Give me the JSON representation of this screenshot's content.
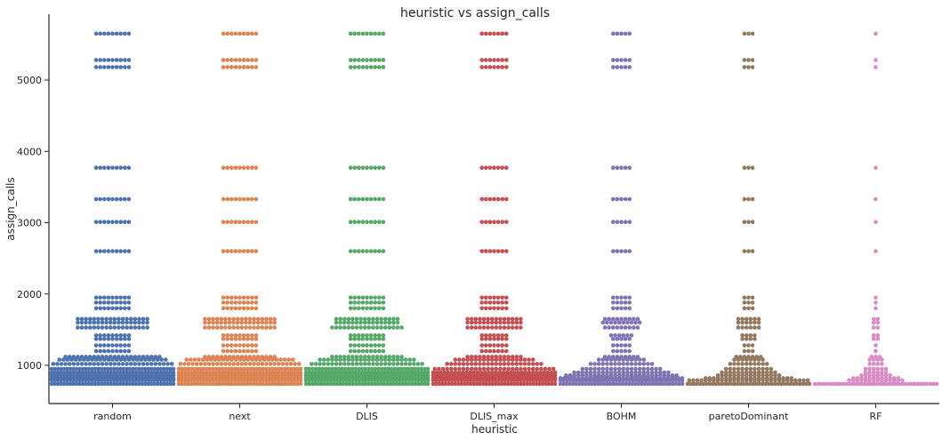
{
  "chart_data": {
    "type": "scatter",
    "subtype": "swarm",
    "title": "heuristic vs assign_calls",
    "xlabel": "heuristic",
    "ylabel": "assign_calls",
    "categories": [
      "random",
      "next",
      "DLIS",
      "DLIS_max",
      "BOHM",
      "paretoDominant",
      "RF"
    ],
    "colors": [
      "#4c72b0",
      "#dd8452",
      "#55a868",
      "#c44e52",
      "#8172b3",
      "#937860",
      "#da8bc3"
    ],
    "ylim": [
      450,
      5800
    ],
    "yticks": [
      1000,
      2000,
      3000,
      4000,
      5000
    ],
    "grid": false,
    "legend": "none",
    "series": [
      {
        "category": "random",
        "levels": [
          {
            "y": 5650,
            "n": 9
          },
          {
            "y": 5280,
            "n": 9
          },
          {
            "y": 5180,
            "n": 9
          },
          {
            "y": 3770,
            "n": 9
          },
          {
            "y": 3330,
            "n": 9
          },
          {
            "y": 3010,
            "n": 9
          },
          {
            "y": 2600,
            "n": 9
          },
          {
            "y": 1950,
            "n": 9
          },
          {
            "y": 1880,
            "n": 9
          },
          {
            "y": 1800,
            "n": 9
          },
          {
            "y": 1650,
            "n": 18
          },
          {
            "y": 1600,
            "n": 18
          },
          {
            "y": 1530,
            "n": 18
          },
          {
            "y": 1420,
            "n": 9
          },
          {
            "y": 1370,
            "n": 9
          },
          {
            "y": 1280,
            "n": 9
          },
          {
            "y": 1200,
            "n": 9
          },
          {
            "y": 1120,
            "n": 24
          },
          {
            "y": 1080,
            "n": 27
          },
          {
            "y": 1020,
            "n": 30
          },
          {
            "y": 950,
            "n": 40
          },
          {
            "y": 900,
            "n": 40
          },
          {
            "y": 860,
            "n": 40
          },
          {
            "y": 820,
            "n": 40
          },
          {
            "y": 790,
            "n": 40
          },
          {
            "y": 740,
            "n": 40
          }
        ]
      },
      {
        "category": "next",
        "levels": [
          {
            "y": 5650,
            "n": 9
          },
          {
            "y": 5280,
            "n": 9
          },
          {
            "y": 5180,
            "n": 9
          },
          {
            "y": 3770,
            "n": 9
          },
          {
            "y": 3330,
            "n": 9
          },
          {
            "y": 3010,
            "n": 9
          },
          {
            "y": 2600,
            "n": 9
          },
          {
            "y": 1950,
            "n": 9
          },
          {
            "y": 1880,
            "n": 9
          },
          {
            "y": 1800,
            "n": 9
          },
          {
            "y": 1650,
            "n": 18
          },
          {
            "y": 1600,
            "n": 18
          },
          {
            "y": 1530,
            "n": 18
          },
          {
            "y": 1420,
            "n": 9
          },
          {
            "y": 1370,
            "n": 9
          },
          {
            "y": 1280,
            "n": 9
          },
          {
            "y": 1200,
            "n": 9
          },
          {
            "y": 1120,
            "n": 18
          },
          {
            "y": 1080,
            "n": 27
          },
          {
            "y": 1020,
            "n": 30
          },
          {
            "y": 950,
            "n": 40
          },
          {
            "y": 900,
            "n": 40
          },
          {
            "y": 860,
            "n": 40
          },
          {
            "y": 820,
            "n": 40
          },
          {
            "y": 790,
            "n": 40
          },
          {
            "y": 740,
            "n": 40
          }
        ]
      },
      {
        "category": "DLIS",
        "levels": [
          {
            "y": 5650,
            "n": 9
          },
          {
            "y": 5280,
            "n": 9
          },
          {
            "y": 5180,
            "n": 9
          },
          {
            "y": 3770,
            "n": 9
          },
          {
            "y": 3330,
            "n": 9
          },
          {
            "y": 3010,
            "n": 9
          },
          {
            "y": 2600,
            "n": 9
          },
          {
            "y": 1950,
            "n": 9
          },
          {
            "y": 1880,
            "n": 9
          },
          {
            "y": 1800,
            "n": 9
          },
          {
            "y": 1650,
            "n": 16
          },
          {
            "y": 1600,
            "n": 16
          },
          {
            "y": 1530,
            "n": 18
          },
          {
            "y": 1420,
            "n": 9
          },
          {
            "y": 1370,
            "n": 9
          },
          {
            "y": 1280,
            "n": 9
          },
          {
            "y": 1200,
            "n": 9
          },
          {
            "y": 1120,
            "n": 18
          },
          {
            "y": 1080,
            "n": 24
          },
          {
            "y": 1020,
            "n": 28
          },
          {
            "y": 950,
            "n": 38
          },
          {
            "y": 900,
            "n": 40
          },
          {
            "y": 860,
            "n": 40
          },
          {
            "y": 820,
            "n": 40
          },
          {
            "y": 790,
            "n": 40
          },
          {
            "y": 740,
            "n": 40
          }
        ]
      },
      {
        "category": "DLIS_max",
        "levels": [
          {
            "y": 5650,
            "n": 7
          },
          {
            "y": 5280,
            "n": 7
          },
          {
            "y": 5180,
            "n": 7
          },
          {
            "y": 3770,
            "n": 7
          },
          {
            "y": 3330,
            "n": 7
          },
          {
            "y": 3010,
            "n": 7
          },
          {
            "y": 2600,
            "n": 7
          },
          {
            "y": 1950,
            "n": 7
          },
          {
            "y": 1880,
            "n": 7
          },
          {
            "y": 1800,
            "n": 7
          },
          {
            "y": 1650,
            "n": 14
          },
          {
            "y": 1600,
            "n": 14
          },
          {
            "y": 1530,
            "n": 14
          },
          {
            "y": 1420,
            "n": 7
          },
          {
            "y": 1370,
            "n": 7
          },
          {
            "y": 1280,
            "n": 7
          },
          {
            "y": 1200,
            "n": 7
          },
          {
            "y": 1120,
            "n": 14
          },
          {
            "y": 1080,
            "n": 20
          },
          {
            "y": 1020,
            "n": 24
          },
          {
            "y": 950,
            "n": 30
          },
          {
            "y": 900,
            "n": 34
          },
          {
            "y": 860,
            "n": 40
          },
          {
            "y": 820,
            "n": 40
          },
          {
            "y": 790,
            "n": 40
          },
          {
            "y": 740,
            "n": 40
          }
        ]
      },
      {
        "category": "BOHM",
        "levels": [
          {
            "y": 5650,
            "n": 5
          },
          {
            "y": 5280,
            "n": 5
          },
          {
            "y": 5180,
            "n": 5
          },
          {
            "y": 3770,
            "n": 5
          },
          {
            "y": 3330,
            "n": 5
          },
          {
            "y": 3010,
            "n": 5
          },
          {
            "y": 2600,
            "n": 5
          },
          {
            "y": 1950,
            "n": 5
          },
          {
            "y": 1880,
            "n": 5
          },
          {
            "y": 1800,
            "n": 5
          },
          {
            "y": 1650,
            "n": 9
          },
          {
            "y": 1600,
            "n": 10
          },
          {
            "y": 1530,
            "n": 9
          },
          {
            "y": 1420,
            "n": 6
          },
          {
            "y": 1370,
            "n": 5
          },
          {
            "y": 1280,
            "n": 5
          },
          {
            "y": 1200,
            "n": 5
          },
          {
            "y": 1120,
            "n": 9
          },
          {
            "y": 1080,
            "n": 12
          },
          {
            "y": 1020,
            "n": 16
          },
          {
            "y": 950,
            "n": 20
          },
          {
            "y": 900,
            "n": 24
          },
          {
            "y": 860,
            "n": 28
          },
          {
            "y": 820,
            "n": 34
          },
          {
            "y": 790,
            "n": 38
          },
          {
            "y": 740,
            "n": 40
          }
        ]
      },
      {
        "category": "paretoDominant",
        "levels": [
          {
            "y": 5650,
            "n": 3
          },
          {
            "y": 5280,
            "n": 3
          },
          {
            "y": 5180,
            "n": 3
          },
          {
            "y": 3770,
            "n": 3
          },
          {
            "y": 3330,
            "n": 3
          },
          {
            "y": 3010,
            "n": 3
          },
          {
            "y": 2600,
            "n": 3
          },
          {
            "y": 1950,
            "n": 3
          },
          {
            "y": 1880,
            "n": 3
          },
          {
            "y": 1800,
            "n": 3
          },
          {
            "y": 1650,
            "n": 6
          },
          {
            "y": 1600,
            "n": 6
          },
          {
            "y": 1530,
            "n": 6
          },
          {
            "y": 1420,
            "n": 4
          },
          {
            "y": 1370,
            "n": 4
          },
          {
            "y": 1280,
            "n": 3
          },
          {
            "y": 1200,
            "n": 3
          },
          {
            "y": 1120,
            "n": 7
          },
          {
            "y": 1080,
            "n": 8
          },
          {
            "y": 1020,
            "n": 10
          },
          {
            "y": 950,
            "n": 12
          },
          {
            "y": 900,
            "n": 14
          },
          {
            "y": 860,
            "n": 16
          },
          {
            "y": 820,
            "n": 22
          },
          {
            "y": 790,
            "n": 30
          },
          {
            "y": 740,
            "n": 40
          }
        ]
      },
      {
        "category": "RF",
        "levels": [
          {
            "y": 5650,
            "n": 1
          },
          {
            "y": 5280,
            "n": 1
          },
          {
            "y": 5180,
            "n": 1
          },
          {
            "y": 3770,
            "n": 1
          },
          {
            "y": 3330,
            "n": 1
          },
          {
            "y": 3010,
            "n": 1
          },
          {
            "y": 2600,
            "n": 1
          },
          {
            "y": 1950,
            "n": 1
          },
          {
            "y": 1880,
            "n": 1
          },
          {
            "y": 1800,
            "n": 1
          },
          {
            "y": 1650,
            "n": 2
          },
          {
            "y": 1600,
            "n": 2
          },
          {
            "y": 1530,
            "n": 2
          },
          {
            "y": 1420,
            "n": 2
          },
          {
            "y": 1370,
            "n": 2
          },
          {
            "y": 1280,
            "n": 1
          },
          {
            "y": 1200,
            "n": 1
          },
          {
            "y": 1120,
            "n": 3
          },
          {
            "y": 1080,
            "n": 4
          },
          {
            "y": 1020,
            "n": 4
          },
          {
            "y": 950,
            "n": 6
          },
          {
            "y": 900,
            "n": 6
          },
          {
            "y": 860,
            "n": 8
          },
          {
            "y": 820,
            "n": 12
          },
          {
            "y": 790,
            "n": 14
          },
          {
            "y": 740,
            "n": 40
          }
        ]
      }
    ]
  }
}
